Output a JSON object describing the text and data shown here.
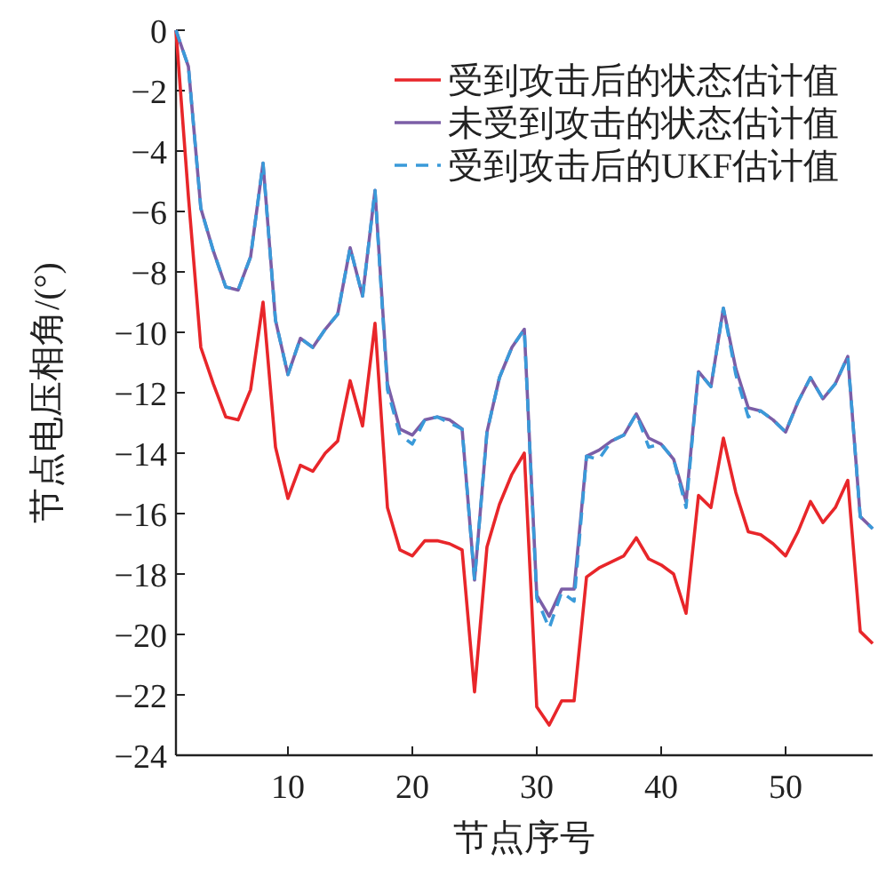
{
  "chart_data": {
    "type": "line",
    "xlabel": "节点序号",
    "ylabel": "节点电压相角/(°)",
    "x": [
      1,
      2,
      3,
      4,
      5,
      6,
      7,
      8,
      9,
      10,
      11,
      12,
      13,
      14,
      15,
      16,
      17,
      18,
      19,
      20,
      21,
      22,
      23,
      24,
      25,
      26,
      27,
      28,
      29,
      30,
      31,
      32,
      33,
      34,
      35,
      36,
      37,
      38,
      39,
      40,
      41,
      42,
      43,
      44,
      45,
      46,
      47,
      48,
      49,
      50,
      51,
      52,
      53,
      54,
      55,
      56,
      57
    ],
    "xlim": [
      1,
      57
    ],
    "xticks": [
      10,
      20,
      30,
      40,
      50
    ],
    "ylim": [
      -24,
      0
    ],
    "yticks": [
      0,
      -2,
      -4,
      -6,
      -8,
      -10,
      -12,
      -14,
      -16,
      -18,
      -20,
      -22,
      -24
    ],
    "grid": false,
    "legend": "top right",
    "marker": "none",
    "series": [
      {
        "name": "受到攻击后的状态估计值",
        "color": "#e8262a",
        "line_style": "solid",
        "values": [
          0,
          -5.5,
          -10.5,
          -11.7,
          -12.8,
          -12.9,
          -11.9,
          -9.0,
          -13.8,
          -15.5,
          -14.4,
          -14.6,
          -14.0,
          -13.6,
          -11.6,
          -13.1,
          -9.7,
          -15.8,
          -17.2,
          -17.4,
          -16.9,
          -16.9,
          -17.0,
          -17.2,
          -21.9,
          -17.1,
          -15.7,
          -14.7,
          -14.0,
          -22.4,
          -23.0,
          -22.2,
          -22.2,
          -18.1,
          -17.8,
          -17.6,
          -17.4,
          -16.8,
          -17.5,
          -17.7,
          -18.0,
          -19.3,
          -15.4,
          -15.8,
          -13.5,
          -15.3,
          -16.6,
          -16.7,
          -17.0,
          -17.4,
          -16.6,
          -15.6,
          -16.3,
          -15.8,
          -14.9,
          -19.9,
          -20.3
        ]
      },
      {
        "name": "未受到攻击的状态估计值",
        "color": "#7b5ea7",
        "line_style": "solid",
        "values": [
          0,
          -1.2,
          -5.9,
          -7.3,
          -8.5,
          -8.6,
          -7.5,
          -4.4,
          -9.6,
          -11.4,
          -10.2,
          -10.5,
          -9.9,
          -9.4,
          -7.2,
          -8.8,
          -5.3,
          -11.7,
          -13.2,
          -13.4,
          -12.9,
          -12.8,
          -12.9,
          -13.2,
          -18.2,
          -13.3,
          -11.5,
          -10.5,
          -9.9,
          -18.7,
          -19.4,
          -18.5,
          -18.5,
          -14.1,
          -13.9,
          -13.6,
          -13.4,
          -12.7,
          -13.5,
          -13.7,
          -14.2,
          -15.6,
          -11.3,
          -11.8,
          -9.2,
          -11.2,
          -12.5,
          -12.6,
          -12.9,
          -13.3,
          -12.3,
          -11.5,
          -12.2,
          -11.7,
          -10.8,
          -16.1,
          -16.5
        ]
      },
      {
        "name": "受到攻击后的UKF估计值",
        "color": "#3a9ad9",
        "line_style": "dashed",
        "values": [
          0,
          -1.2,
          -5.9,
          -7.3,
          -8.5,
          -8.6,
          -7.5,
          -4.4,
          -9.6,
          -11.4,
          -10.2,
          -10.5,
          -9.9,
          -9.4,
          -7.2,
          -8.8,
          -5.3,
          -11.9,
          -13.4,
          -13.7,
          -12.9,
          -12.8,
          -13.0,
          -13.2,
          -18.2,
          -13.3,
          -11.5,
          -10.5,
          -9.9,
          -18.8,
          -19.8,
          -18.6,
          -18.9,
          -14.1,
          -14.2,
          -13.6,
          -13.4,
          -12.7,
          -13.8,
          -13.7,
          -14.2,
          -15.8,
          -11.3,
          -11.8,
          -9.2,
          -11.4,
          -12.8,
          -12.6,
          -12.9,
          -13.3,
          -12.3,
          -11.5,
          -12.2,
          -11.7,
          -10.8,
          -16.1,
          -16.5
        ]
      }
    ]
  }
}
